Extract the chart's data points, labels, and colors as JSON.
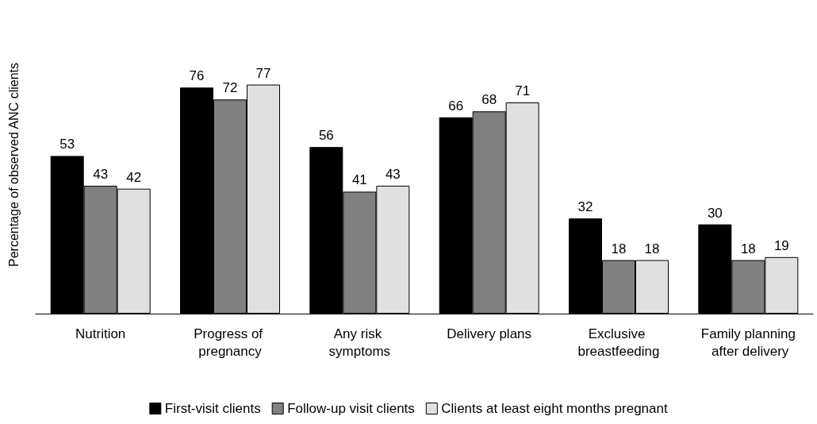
{
  "chart_data": {
    "type": "bar",
    "ylabel": "Percentage of observed ANC clients",
    "categories": [
      "Nutrition",
      "Progress of pregnancy",
      "Any risk symptoms",
      "Delivery plans",
      "Exclusive breastfeeding",
      "Family planning after delivery"
    ],
    "series": [
      {
        "name": "First-visit clients",
        "color": "#000000",
        "values": [
          53,
          76,
          56,
          66,
          32,
          30
        ]
      },
      {
        "name": "Follow-up visit clients",
        "color": "#808080",
        "values": [
          43,
          72,
          41,
          68,
          18,
          18
        ]
      },
      {
        "name": "Clients at least eight months pregnant",
        "color": "#e0e0e0",
        "values": [
          42,
          77,
          43,
          71,
          18,
          19
        ]
      }
    ],
    "data_labels": true,
    "legend": "bottom",
    "grid": false
  }
}
